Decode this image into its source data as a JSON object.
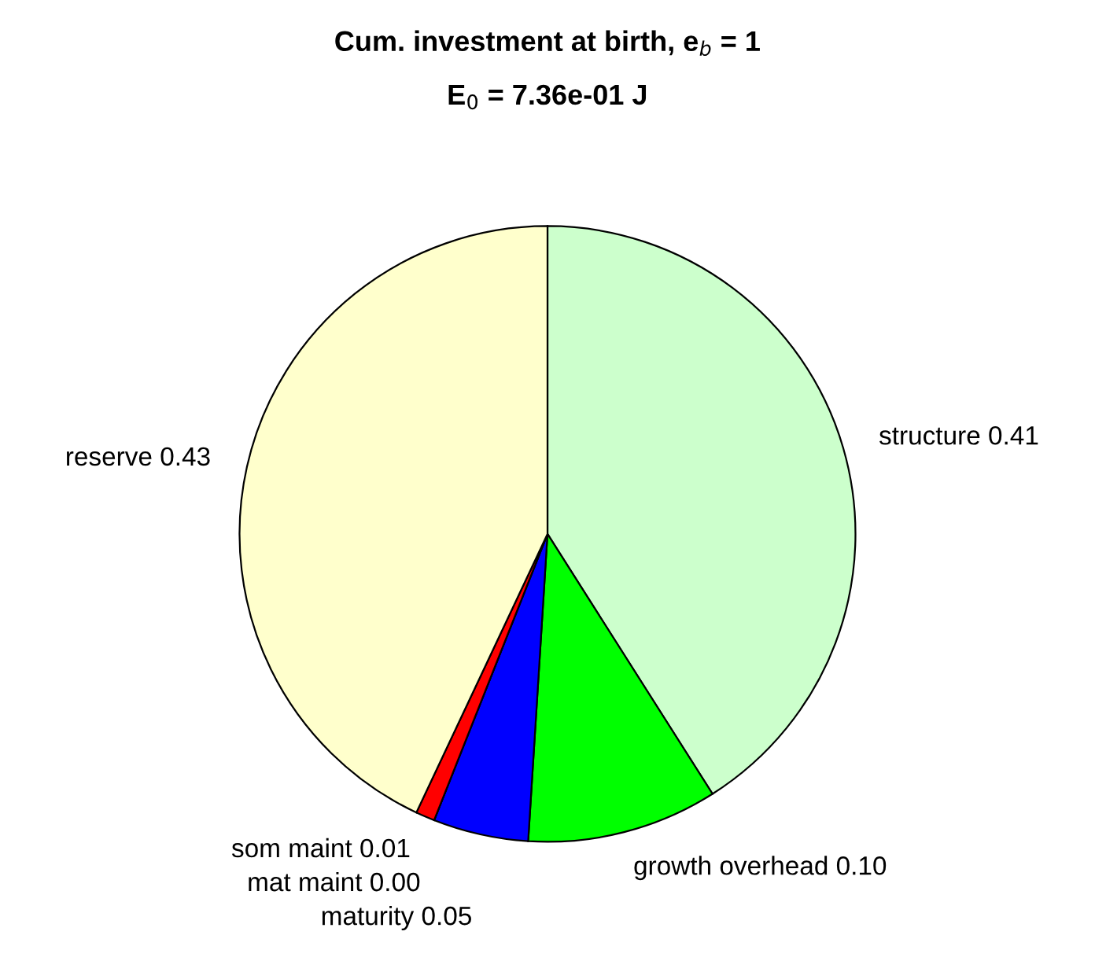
{
  "chart_data": {
    "type": "pie",
    "title": "Cum. investment at birth, e$_{b}$ = 1",
    "subtitle": "E$_{0}$ = 7.36e-01 J",
    "categories": [
      "structure",
      "growth overhead",
      "maturity",
      "mat maint",
      "som maint",
      "reserve"
    ],
    "values": [
      0.41,
      0.1,
      0.05,
      0.0,
      0.01,
      0.43
    ],
    "value_labels": [
      "0.41",
      "0.10",
      "0.05",
      "0.00",
      "0.01",
      "0.43"
    ],
    "colors": [
      "#ccffcc",
      "#00ff00",
      "#0000ff",
      "#ff00ff",
      "#ff0000",
      "#ffffcc"
    ]
  }
}
